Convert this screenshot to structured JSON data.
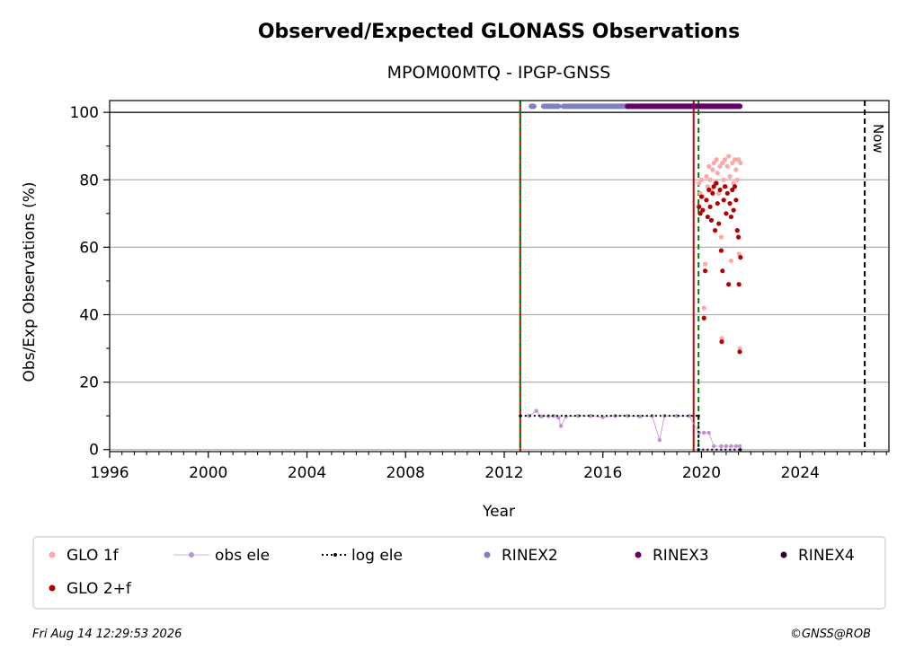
{
  "chart_data": {
    "type": "scatter",
    "title": "Observed/Expected GLONASS Observations",
    "subtitle": "MPOM00MTQ - IPGP-GNSS",
    "xlabel": "Year",
    "ylabel": "Obs/Exp Observations (%)",
    "xlim": [
      1996,
      2027.6
    ],
    "ylim": [
      -0.6,
      103.5
    ],
    "x_ticks": [
      1996,
      2000,
      2004,
      2008,
      2012,
      2016,
      2020,
      2024
    ],
    "y_ticks": [
      0,
      20,
      40,
      60,
      80,
      100
    ],
    "x_minor_step": 0.5,
    "y_minor_step": 10,
    "grid": "horizontal",
    "reference_line_y": 100,
    "legend_placement": "below-plot",
    "vlines": [
      {
        "x": 2012.65,
        "color": "#cc0000",
        "style": "solid"
      },
      {
        "x": 2012.65,
        "color": "#008000",
        "style": "dashed"
      },
      {
        "x": 2019.68,
        "color": "#cc0000",
        "style": "solid"
      },
      {
        "x": 2019.88,
        "color": "#008000",
        "style": "dashed"
      },
      {
        "x": 2026.62,
        "color": "#000000",
        "style": "dashed",
        "label": "Now"
      }
    ],
    "series": [
      {
        "name": "GLO 1f",
        "color": "#ffa8a8",
        "marker": "dot",
        "points": [
          [
            2019.9,
            79
          ],
          [
            2019.95,
            76
          ],
          [
            2020.0,
            80
          ],
          [
            2020.05,
            75
          ],
          [
            2020.1,
            42
          ],
          [
            2020.15,
            55
          ],
          [
            2020.2,
            81
          ],
          [
            2020.25,
            78
          ],
          [
            2020.3,
            84
          ],
          [
            2020.35,
            80
          ],
          [
            2020.4,
            77
          ],
          [
            2020.45,
            83
          ],
          [
            2020.5,
            85
          ],
          [
            2020.55,
            79
          ],
          [
            2020.6,
            86
          ],
          [
            2020.65,
            82
          ],
          [
            2020.7,
            76
          ],
          [
            2020.75,
            84
          ],
          [
            2020.8,
            63
          ],
          [
            2020.82,
            33
          ],
          [
            2020.85,
            85
          ],
          [
            2020.9,
            80
          ],
          [
            2020.95,
            86
          ],
          [
            2021.0,
            78
          ],
          [
            2021.05,
            84
          ],
          [
            2021.1,
            87
          ],
          [
            2021.15,
            81
          ],
          [
            2021.2,
            56
          ],
          [
            2021.25,
            85
          ],
          [
            2021.3,
            79
          ],
          [
            2021.35,
            86
          ],
          [
            2021.4,
            83
          ],
          [
            2021.45,
            80
          ],
          [
            2021.5,
            86
          ],
          [
            2021.52,
            58
          ],
          [
            2021.55,
            30
          ],
          [
            2021.58,
            85
          ]
        ]
      },
      {
        "name": "GLO 2+f",
        "color": "#b30000",
        "marker": "dot",
        "points": [
          [
            2019.9,
            72
          ],
          [
            2019.95,
            70
          ],
          [
            2020.0,
            75
          ],
          [
            2020.05,
            71
          ],
          [
            2020.1,
            39
          ],
          [
            2020.15,
            53
          ],
          [
            2020.2,
            74
          ],
          [
            2020.25,
            69
          ],
          [
            2020.3,
            77
          ],
          [
            2020.35,
            72
          ],
          [
            2020.4,
            68
          ],
          [
            2020.45,
            76
          ],
          [
            2020.5,
            78
          ],
          [
            2020.55,
            65
          ],
          [
            2020.6,
            79
          ],
          [
            2020.65,
            73
          ],
          [
            2020.7,
            67
          ],
          [
            2020.75,
            77
          ],
          [
            2020.8,
            59
          ],
          [
            2020.82,
            32
          ],
          [
            2020.85,
            53
          ],
          [
            2020.9,
            74
          ],
          [
            2020.95,
            78
          ],
          [
            2021.0,
            70
          ],
          [
            2021.05,
            76
          ],
          [
            2021.1,
            49
          ],
          [
            2021.15,
            73
          ],
          [
            2021.2,
            69
          ],
          [
            2021.25,
            77
          ],
          [
            2021.3,
            71
          ],
          [
            2021.35,
            78
          ],
          [
            2021.4,
            74
          ],
          [
            2021.45,
            65
          ],
          [
            2021.5,
            63
          ],
          [
            2021.52,
            49
          ],
          [
            2021.55,
            29
          ],
          [
            2021.58,
            57
          ]
        ]
      },
      {
        "name": "obs ele",
        "color": "#c090d0",
        "marker": "line-dot",
        "points": [
          [
            2013.0,
            10
          ],
          [
            2013.3,
            11.5
          ],
          [
            2013.5,
            9.8
          ],
          [
            2013.8,
            9.9
          ],
          [
            2014.0,
            10
          ],
          [
            2014.2,
            9.5
          ],
          [
            2014.3,
            7
          ],
          [
            2014.5,
            9.8
          ],
          [
            2015.0,
            10
          ],
          [
            2015.5,
            10
          ],
          [
            2016.0,
            9.6
          ],
          [
            2016.5,
            10
          ],
          [
            2017.0,
            10
          ],
          [
            2017.5,
            9.8
          ],
          [
            2018.0,
            10
          ],
          [
            2018.3,
            2.8
          ],
          [
            2018.5,
            10
          ],
          [
            2019.0,
            10
          ],
          [
            2019.5,
            10
          ],
          [
            2019.9,
            5
          ],
          [
            2020.1,
            5
          ],
          [
            2020.3,
            5
          ],
          [
            2020.5,
            1
          ],
          [
            2020.8,
            1
          ],
          [
            2021.0,
            1
          ],
          [
            2021.2,
            1
          ],
          [
            2021.4,
            1
          ],
          [
            2021.55,
            1
          ]
        ]
      },
      {
        "name": "log ele",
        "color": "#000000",
        "marker": "dotted-line",
        "points": [
          [
            2012.65,
            10
          ],
          [
            2019.88,
            10
          ],
          [
            2019.88,
            0
          ],
          [
            2021.58,
            0
          ]
        ]
      },
      {
        "name": "RINEX2",
        "color": "#8080c0",
        "marker": "band",
        "y": 101.8,
        "ranges": [
          [
            2013.1,
            2013.2
          ],
          [
            2013.6,
            2014.2
          ],
          [
            2014.4,
            2017.0
          ],
          [
            2017.6,
            2021.55
          ]
        ]
      },
      {
        "name": "RINEX3",
        "color": "#660066",
        "marker": "band",
        "y": 101.8,
        "ranges": [
          [
            2017.0,
            2017.6
          ],
          [
            2017.6,
            2021.55
          ]
        ]
      },
      {
        "name": "RINEX4",
        "color": "#330033",
        "marker": "band",
        "y": 101.8,
        "ranges": []
      }
    ]
  },
  "footer": {
    "timestamp": "Fri Aug 14 12:29:53 2026",
    "credit": "©GNSS@ROB"
  }
}
